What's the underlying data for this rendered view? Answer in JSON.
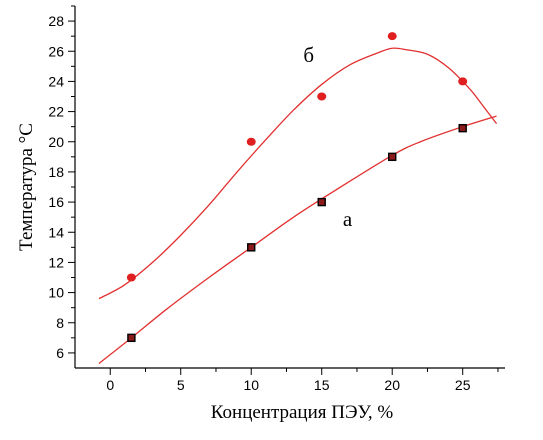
{
  "chart_data": {
    "type": "scatter",
    "xlabel": "Концентрация ПЭУ, %",
    "ylabel": "Температура °С",
    "xlim": [
      -2.5,
      28
    ],
    "ylim": [
      5,
      29
    ],
    "x_ticks": [
      "0",
      "5",
      "10",
      "15",
      "20",
      "25"
    ],
    "y_ticks": [
      "6",
      "8",
      "10",
      "12",
      "14",
      "16",
      "18",
      "20",
      "22",
      "24",
      "26",
      "28"
    ],
    "grid": false,
    "series": [
      {
        "name": "а",
        "marker": "square",
        "marker_color": "#000000",
        "marker_fill": "#8b1a1a",
        "line_color": "#e23030",
        "points": [
          {
            "x": 1.5,
            "y": 7.0
          },
          {
            "x": 10,
            "y": 13.0
          },
          {
            "x": 15,
            "y": 16.0
          },
          {
            "x": 20,
            "y": 19.0
          },
          {
            "x": 25,
            "y": 20.9
          }
        ],
        "fit": [
          {
            "x": -0.8,
            "y": 5.3
          },
          {
            "x": 1.5,
            "y": 7.0
          },
          {
            "x": 4,
            "y": 8.9
          },
          {
            "x": 7,
            "y": 11.0
          },
          {
            "x": 10,
            "y": 13.0
          },
          {
            "x": 13,
            "y": 15.0
          },
          {
            "x": 16,
            "y": 16.8
          },
          {
            "x": 20,
            "y": 19.1
          },
          {
            "x": 22,
            "y": 20.0
          },
          {
            "x": 25,
            "y": 21.0
          },
          {
            "x": 27.4,
            "y": 21.7
          }
        ]
      },
      {
        "name": "б",
        "marker": "circle",
        "marker_color": "#e02020",
        "line_color": "#e23030",
        "points": [
          {
            "x": 1.5,
            "y": 11.0
          },
          {
            "x": 10,
            "y": 20.0
          },
          {
            "x": 15,
            "y": 23.0
          },
          {
            "x": 20,
            "y": 27.0
          },
          {
            "x": 25,
            "y": 24.0
          }
        ],
        "fit": [
          {
            "x": -0.8,
            "y": 9.6
          },
          {
            "x": 1,
            "y": 10.5
          },
          {
            "x": 3,
            "y": 12.0
          },
          {
            "x": 5,
            "y": 13.8
          },
          {
            "x": 7,
            "y": 15.8
          },
          {
            "x": 9,
            "y": 18.0
          },
          {
            "x": 11,
            "y": 20.1
          },
          {
            "x": 13,
            "y": 22.1
          },
          {
            "x": 15,
            "y": 23.8
          },
          {
            "x": 17,
            "y": 25.1
          },
          {
            "x": 19,
            "y": 25.9
          },
          {
            "x": 20,
            "y": 26.2
          },
          {
            "x": 21,
            "y": 26.1
          },
          {
            "x": 22.5,
            "y": 25.8
          },
          {
            "x": 24,
            "y": 24.9
          },
          {
            "x": 25.5,
            "y": 23.5
          },
          {
            "x": 26.5,
            "y": 22.3
          },
          {
            "x": 27.4,
            "y": 21.2
          }
        ]
      }
    ]
  }
}
